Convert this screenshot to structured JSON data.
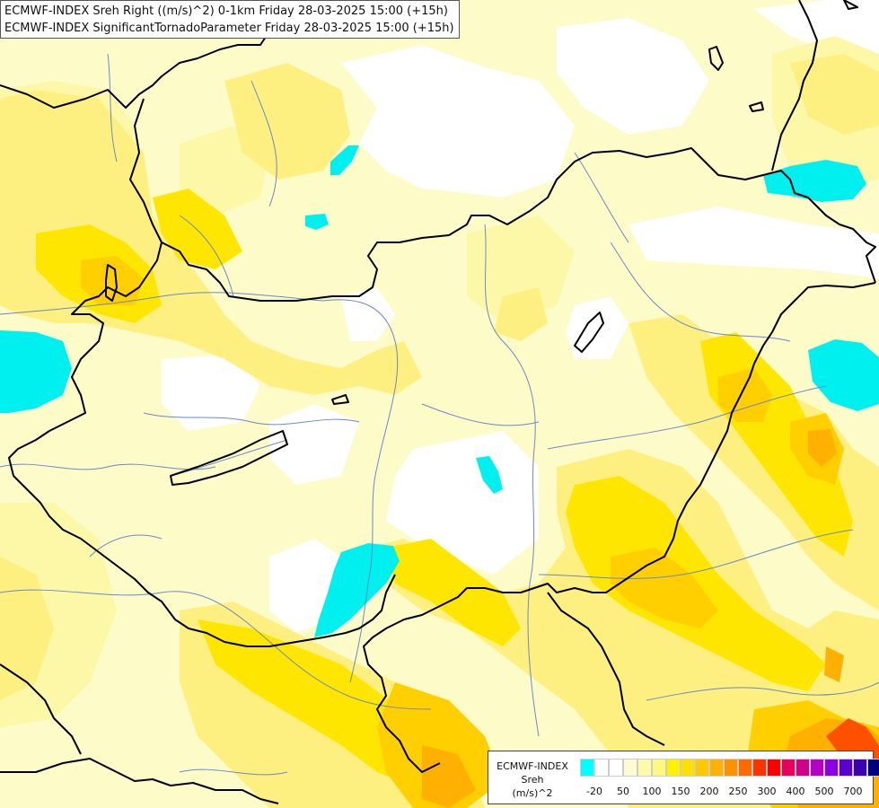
{
  "header": {
    "line1": "ECMWF-INDEX Sreh Right ((m/s)^2) 0-1km Friday 28-03-2025 15:00 (+15h)",
    "line2": "ECMWF-INDEX SignificantTornadoParameter Friday 28-03-2025 15:00 (+15h)"
  },
  "legend": {
    "title": "ECMWF-INDEX",
    "variable": "Sreh",
    "unit": "(m/s)^2",
    "colors": [
      "#00ffff",
      "#ffffff",
      "#ffffff",
      "#fdfbd0",
      "#fdfba8",
      "#fdf880",
      "#fff200",
      "#ffe000",
      "#ffc800",
      "#ffb000",
      "#ff9000",
      "#ff6a00",
      "#ff3300",
      "#ff0000",
      "#e8005a",
      "#d0008c",
      "#b400c8",
      "#8c00e6",
      "#5a00d2",
      "#3c00b4",
      "#000080"
    ],
    "ticks": [
      "-20",
      "50",
      "100",
      "150",
      "200",
      "250",
      "300",
      "400",
      "500",
      "700"
    ]
  },
  "map": {
    "colors": {
      "background": "#fdfbc8",
      "white": "#ffffff",
      "pale": "#fdf7a8",
      "light_yellow": "#fdf080",
      "yellow": "#ffe600",
      "gold": "#ffcf00",
      "orange": "#ffb000",
      "dark_orange": "#ff8c00",
      "red_orange": "#ff5000",
      "red": "#ff1a1a",
      "cyan": "#00f0f0",
      "border": "#000000",
      "river": "#6a8ac8"
    }
  }
}
